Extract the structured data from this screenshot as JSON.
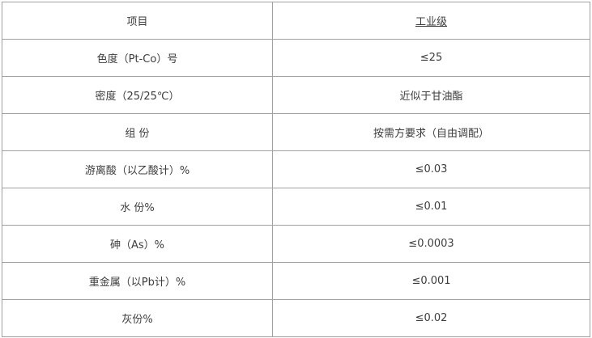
{
  "table": {
    "columns": [
      {
        "label": "项目"
      },
      {
        "label": "工业级"
      }
    ],
    "rows": [
      {
        "item": "色度（Pt-Co）号",
        "value": "≤25"
      },
      {
        "item": "密度（25/25℃）",
        "value": "近似于甘油酯"
      },
      {
        "item": "组 份",
        "value": "按需方要求（自由调配）"
      },
      {
        "item": "游离酸（以乙酸计）%",
        "value": "≤0.03"
      },
      {
        "item": "水 份%",
        "value": "≤0.01"
      },
      {
        "item": "砷（As）%",
        "value": "≤0.0003"
      },
      {
        "item": "重金属（以Pb计）%",
        "value": "≤0.001"
      },
      {
        "item": "灰份%",
        "value": "≤0.02"
      }
    ],
    "colors": {
      "border": "#a0a0a0",
      "text": "#3d3d3d",
      "background": "#ffffff"
    }
  }
}
